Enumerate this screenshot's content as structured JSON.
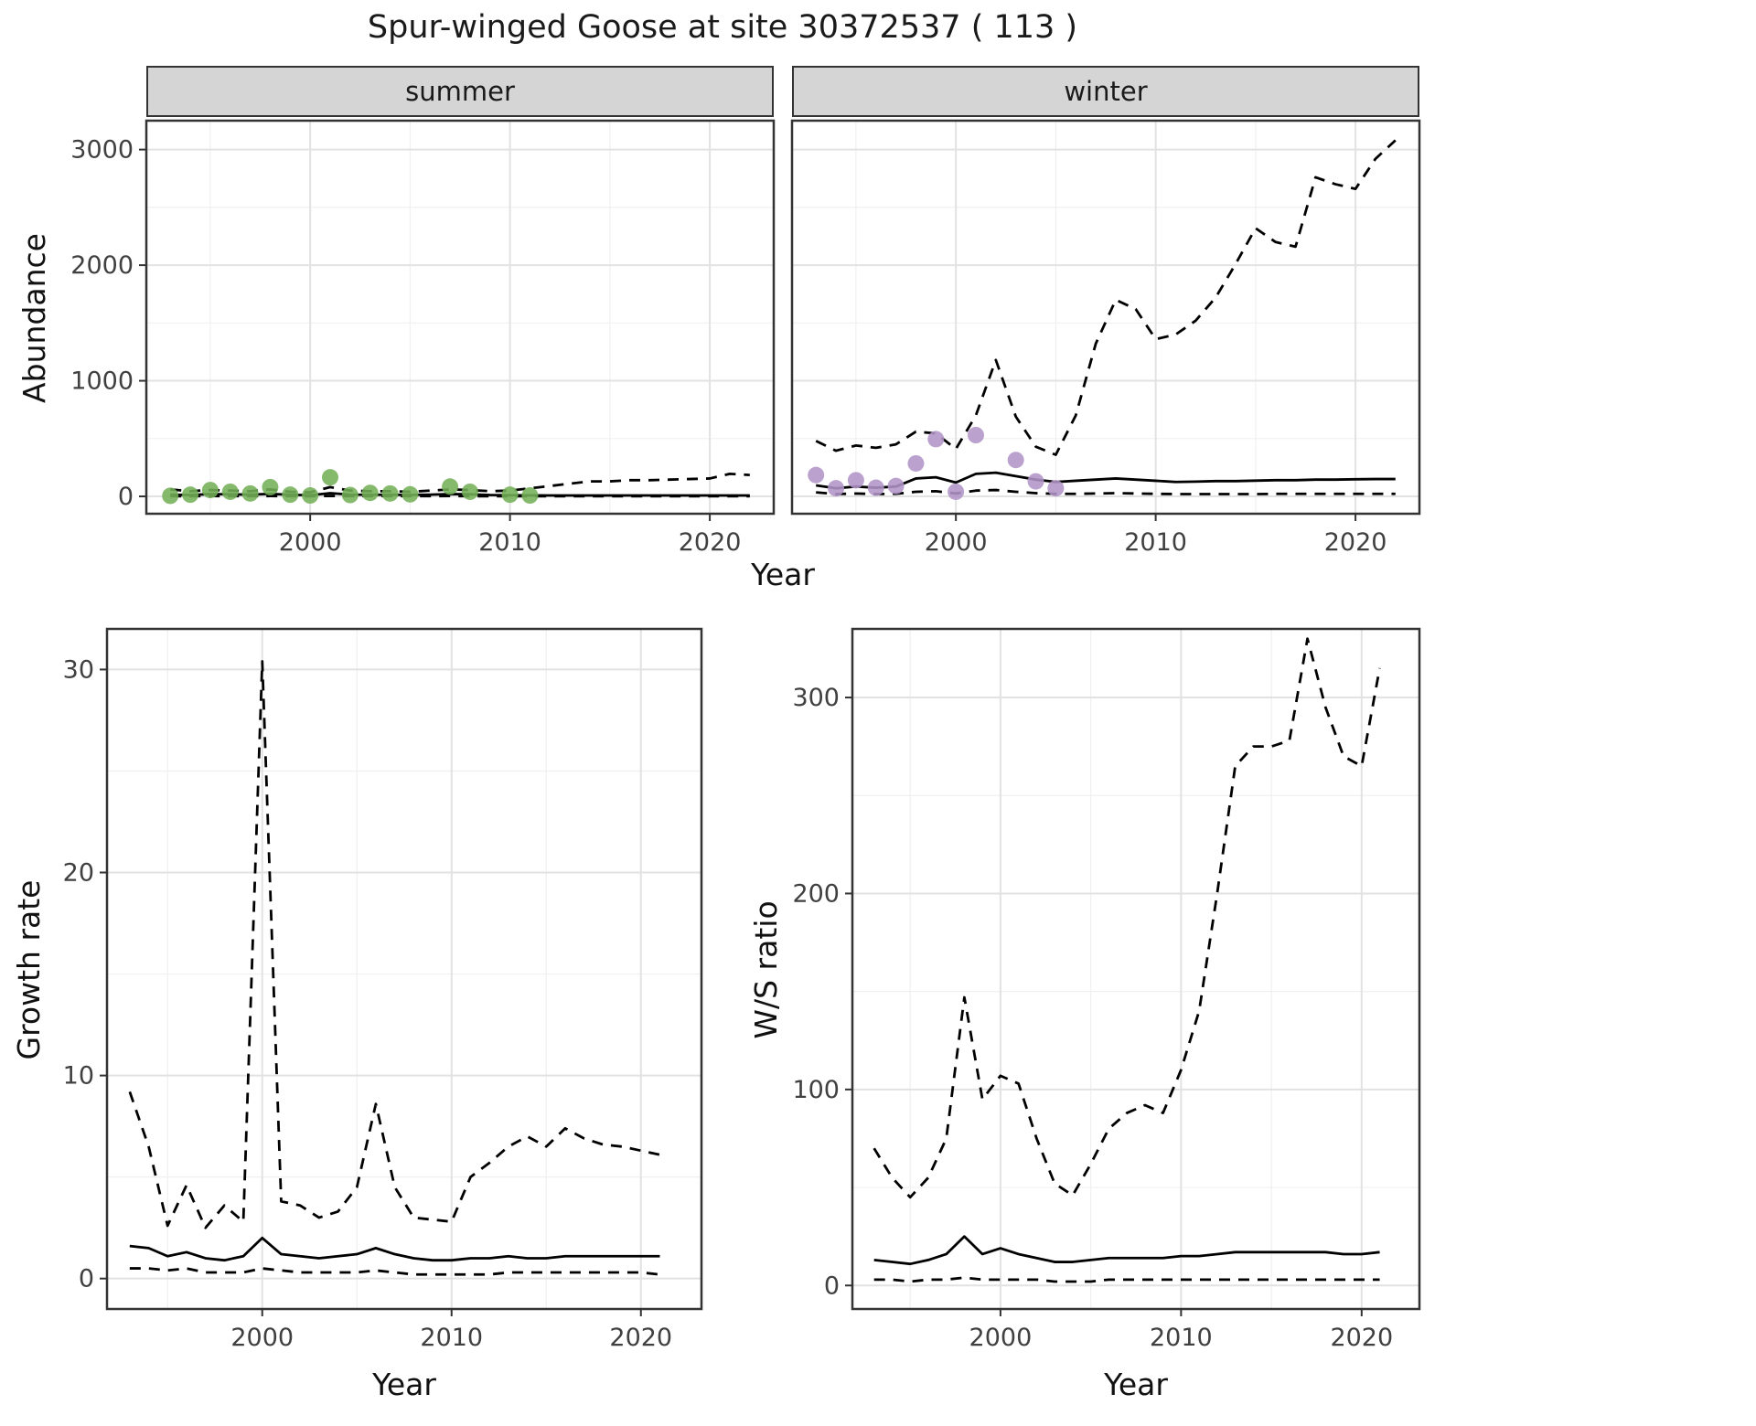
{
  "title": "Spur-winged Goose at site 30372537 ( 113 )",
  "colors": {
    "summer_point": "#74b059",
    "winter_point": "#b294c7",
    "line": "#000000",
    "grid_major": "#e2e2e2",
    "grid_minor": "#f0f0f0",
    "strip_bg": "#d5d5d5",
    "panel_border": "#333333",
    "tick_text": "#404040"
  },
  "chart_data": [
    {
      "id": "abundance-summer",
      "type": "line",
      "facet_label": "summer",
      "xlabel": "Year",
      "ylabel": "Abundance",
      "xlim": [
        1991.8,
        2023.2
      ],
      "ylim": [
        -150,
        3250
      ],
      "xticks": [
        2000,
        2010,
        2020
      ],
      "yticks": [
        0,
        1000,
        2000,
        3000
      ],
      "xticks_minor": [
        1995,
        2005,
        2015
      ],
      "yticks_minor": [
        500,
        1500,
        2500
      ],
      "x": [
        1993,
        1994,
        1995,
        1996,
        1997,
        1998,
        1999,
        2000,
        2001,
        2002,
        2003,
        2004,
        2005,
        2006,
        2007,
        2008,
        2009,
        2010,
        2011,
        2012,
        2013,
        2014,
        2015,
        2016,
        2017,
        2018,
        2019,
        2020,
        2021,
        2022
      ],
      "series": [
        {
          "name": "median",
          "line": "solid",
          "values": [
            15,
            12,
            20,
            18,
            15,
            22,
            14,
            10,
            28,
            15,
            14,
            14,
            13,
            15,
            20,
            18,
            12,
            10,
            9,
            8,
            8,
            8,
            8,
            8,
            8,
            8,
            8,
            8,
            8,
            8
          ]
        },
        {
          "name": "lower",
          "line": "dashed",
          "values": [
            2,
            1,
            3,
            2,
            2,
            3,
            2,
            1,
            4,
            2,
            2,
            2,
            2,
            2,
            3,
            2,
            1,
            1,
            1,
            1,
            1,
            1,
            1,
            1,
            1,
            1,
            1,
            1,
            1,
            1
          ]
        },
        {
          "name": "upper",
          "line": "dashed",
          "values": [
            60,
            45,
            55,
            50,
            45,
            60,
            40,
            35,
            80,
            50,
            45,
            45,
            40,
            50,
            60,
            55,
            45,
            50,
            70,
            90,
            110,
            130,
            130,
            140,
            140,
            145,
            150,
            155,
            195,
            185
          ]
        }
      ],
      "points": {
        "name": "observed-summer-counts",
        "color": "#74b059",
        "x": [
          1993,
          1994,
          1995,
          1996,
          1997,
          1998,
          1999,
          2000,
          2001,
          2002,
          2003,
          2004,
          2005,
          2007,
          2008,
          2010,
          2011
        ],
        "values": [
          5,
          15,
          55,
          40,
          25,
          80,
          15,
          8,
          165,
          12,
          30,
          25,
          18,
          85,
          40,
          15,
          8
        ]
      }
    },
    {
      "id": "abundance-winter",
      "type": "line",
      "facet_label": "winter",
      "xlabel": "Year",
      "ylabel": "Abundance",
      "xlim": [
        1991.8,
        2023.2
      ],
      "ylim": [
        -150,
        3250
      ],
      "xticks": [
        2000,
        2010,
        2020
      ],
      "yticks": [
        0,
        1000,
        2000,
        3000
      ],
      "xticks_minor": [
        1995,
        2005,
        2015
      ],
      "yticks_minor": [
        500,
        1500,
        2500
      ],
      "x": [
        1993,
        1994,
        1995,
        1996,
        1997,
        1998,
        1999,
        2000,
        2001,
        2002,
        2003,
        2004,
        2005,
        2006,
        2007,
        2008,
        2009,
        2010,
        2011,
        2012,
        2013,
        2014,
        2015,
        2016,
        2017,
        2018,
        2019,
        2020,
        2021,
        2022
      ],
      "series": [
        {
          "name": "median",
          "line": "solid",
          "values": [
            95,
            70,
            85,
            75,
            85,
            155,
            165,
            120,
            195,
            205,
            175,
            145,
            125,
            135,
            145,
            155,
            145,
            135,
            125,
            128,
            132,
            132,
            136,
            140,
            140,
            145,
            145,
            148,
            150,
            150
          ]
        },
        {
          "name": "lower",
          "line": "dashed",
          "values": [
            35,
            20,
            25,
            20,
            22,
            40,
            45,
            25,
            50,
            55,
            40,
            28,
            22,
            22,
            25,
            28,
            25,
            22,
            20,
            20,
            20,
            20,
            20,
            22,
            22,
            22,
            22,
            22,
            22,
            22
          ]
        },
        {
          "name": "upper",
          "line": "dashed",
          "values": [
            480,
            395,
            440,
            420,
            450,
            560,
            545,
            410,
            700,
            1180,
            690,
            430,
            360,
            700,
            1320,
            1700,
            1620,
            1360,
            1400,
            1520,
            1720,
            2010,
            2320,
            2200,
            2160,
            2760,
            2700,
            2660,
            2920,
            3080
          ]
        }
      ],
      "points": {
        "name": "observed-winter-counts",
        "color": "#b294c7",
        "x": [
          1993,
          1994,
          1995,
          1996,
          1997,
          1998,
          1999,
          2000,
          2001,
          2003,
          2004,
          2005
        ],
        "values": [
          185,
          70,
          140,
          75,
          90,
          285,
          495,
          40,
          530,
          315,
          130,
          70
        ]
      }
    },
    {
      "id": "growth-rate",
      "type": "line",
      "xlabel": "Year",
      "ylabel": "Growth rate",
      "xlim": [
        1991.8,
        2023.2
      ],
      "ylim": [
        -1.5,
        32
      ],
      "xticks": [
        2000,
        2010,
        2020
      ],
      "yticks": [
        0,
        10,
        20,
        30
      ],
      "xticks_minor": [
        1995,
        2005,
        2015
      ],
      "yticks_minor": [
        5,
        15,
        25
      ],
      "x": [
        1993,
        1994,
        1995,
        1996,
        1997,
        1998,
        1999,
        2000,
        2001,
        2002,
        2003,
        2004,
        2005,
        2006,
        2007,
        2008,
        2009,
        2010,
        2011,
        2012,
        2013,
        2014,
        2015,
        2016,
        2017,
        2018,
        2019,
        2020,
        2021
      ],
      "series": [
        {
          "name": "median",
          "line": "solid",
          "values": [
            1.6,
            1.5,
            1.1,
            1.3,
            1.0,
            0.9,
            1.1,
            2.0,
            1.2,
            1.1,
            1.0,
            1.1,
            1.2,
            1.5,
            1.2,
            1.0,
            0.9,
            0.9,
            1.0,
            1.0,
            1.1,
            1.0,
            1.0,
            1.1,
            1.1,
            1.1,
            1.1,
            1.1,
            1.1
          ]
        },
        {
          "name": "lower",
          "line": "dashed",
          "values": [
            0.5,
            0.5,
            0.4,
            0.5,
            0.3,
            0.3,
            0.3,
            0.5,
            0.4,
            0.3,
            0.3,
            0.3,
            0.3,
            0.4,
            0.3,
            0.2,
            0.2,
            0.2,
            0.2,
            0.2,
            0.3,
            0.3,
            0.3,
            0.3,
            0.3,
            0.3,
            0.3,
            0.3,
            0.2
          ]
        },
        {
          "name": "upper",
          "line": "dashed",
          "values": [
            9.2,
            6.5,
            2.6,
            4.6,
            2.5,
            3.6,
            2.8,
            30.4,
            3.8,
            3.6,
            3.0,
            3.3,
            4.5,
            8.6,
            4.5,
            3.0,
            2.9,
            2.8,
            5.0,
            5.7,
            6.5,
            7.0,
            6.5,
            7.4,
            6.9,
            6.6,
            6.5,
            6.3,
            6.1
          ]
        }
      ]
    },
    {
      "id": "ws-ratio",
      "type": "line",
      "xlabel": "Year",
      "ylabel": "W/S ratio",
      "xlim": [
        1991.8,
        2023.2
      ],
      "ylim": [
        -12,
        335
      ],
      "xticks": [
        2000,
        2010,
        2020
      ],
      "yticks": [
        0,
        100,
        200,
        300
      ],
      "xticks_minor": [
        1995,
        2005,
        2015
      ],
      "yticks_minor": [
        50,
        150,
        250
      ],
      "x": [
        1993,
        1994,
        1995,
        1996,
        1997,
        1998,
        1999,
        2000,
        2001,
        2002,
        2003,
        2004,
        2005,
        2006,
        2007,
        2008,
        2009,
        2010,
        2011,
        2012,
        2013,
        2014,
        2015,
        2016,
        2017,
        2018,
        2019,
        2020,
        2021
      ],
      "series": [
        {
          "name": "median",
          "line": "solid",
          "values": [
            13,
            12,
            11,
            13,
            16,
            25,
            16,
            19,
            16,
            14,
            12,
            12,
            13,
            14,
            14,
            14,
            14,
            15,
            15,
            16,
            17,
            17,
            17,
            17,
            17,
            17,
            16,
            16,
            17
          ]
        },
        {
          "name": "lower",
          "line": "dashed",
          "values": [
            3,
            3,
            2,
            3,
            3,
            4,
            3,
            3,
            3,
            3,
            2,
            2,
            2,
            3,
            3,
            3,
            3,
            3,
            3,
            3,
            3,
            3,
            3,
            3,
            3,
            3,
            3,
            3,
            3
          ]
        },
        {
          "name": "upper",
          "line": "dashed",
          "values": [
            70,
            55,
            45,
            55,
            75,
            147,
            95,
            107,
            103,
            75,
            52,
            46,
            62,
            80,
            88,
            92,
            88,
            110,
            140,
            200,
            265,
            275,
            275,
            278,
            330,
            295,
            270,
            265,
            315
          ]
        }
      ]
    }
  ]
}
